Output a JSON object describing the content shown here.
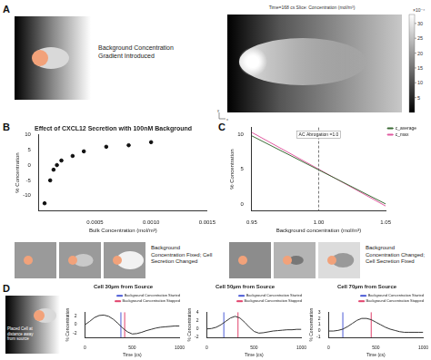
{
  "panel_labels": [
    "A",
    "B",
    "C",
    "D"
  ],
  "diagram_a": {
    "text": "Background Concentration Gradient Introduced"
  },
  "simulation": {
    "title": "Time=168 cs  Slice: Concentration (mol/m³)",
    "axes": [
      "y",
      "x"
    ],
    "colorbar": {
      "label": "×10⁻⁴",
      "range": [
        0,
        33
      ],
      "ticks": [
        5,
        10,
        15,
        20,
        25,
        30
      ]
    }
  },
  "diagram_b": {
    "text": "Background Concentration Fixed; Cell Secretion Changed"
  },
  "diagram_c": {
    "text": "Background Concentration Changed; Cell Secretion Fixed"
  },
  "diagram_d": {
    "text": "Placed Cell at distance away from source"
  },
  "chart_data": [
    {
      "type": "scatter",
      "title": "Effect of CXCL12 Secretion with 100nM Background",
      "x_label": "Bulk Concentration (mol/m³)",
      "y_label": "% Concentration",
      "x": [
        5e-05,
        0.0001,
        0.00013,
        0.00016,
        0.0002,
        0.0003,
        0.0004,
        0.0006,
        0.0008,
        0.001
      ],
      "values": [
        -12.5,
        -5,
        -1.5,
        0,
        1.5,
        3,
        4.5,
        6,
        6.5,
        7.5
      ],
      "color": "#111111",
      "marker": "circle",
      "xlim": [
        0,
        0.0015
      ],
      "xticks": [
        0.0005,
        {
          "value": 0.001,
          "label": "0.0010"
        },
        0.0015
      ],
      "ylim": [
        -15,
        10
      ],
      "yticks": [
        -10,
        -5,
        0,
        5,
        10
      ],
      "grid": false
    },
    {
      "type": "line",
      "x_label": "Background concentration (mol/m³)",
      "y_label": "% Concentration",
      "x": [
        0.95,
        1.0,
        1.05
      ],
      "series": [
        {
          "name": "c_average",
          "color": "#3a6b35",
          "values": [
            9.8,
            4.9,
            0
          ]
        },
        {
          "name": "c_max",
          "color": "#e05aa0",
          "values": [
            10.3,
            5,
            -0.3
          ]
        }
      ],
      "annotations": [
        {
          "x": 1,
          "text": "AC Abrogation =1.0"
        }
      ],
      "legend": "right",
      "xlim": [
        0.95,
        1.05
      ],
      "xticks": [
        0.95,
        {
          "value": 1,
          "label": "1.00"
        },
        1.05
      ],
      "ylim": [
        -1,
        11
      ],
      "yticks": [
        0,
        5,
        10
      ],
      "grid": false
    },
    {
      "type": "line",
      "title": "Cell 30µm from Source",
      "x_label": "Time (cs)",
      "y_label": "% Concentration",
      "x": [
        0,
        50,
        100,
        150,
        200,
        250,
        300,
        350,
        400,
        450,
        500,
        550,
        600,
        650,
        700,
        750,
        800,
        850,
        900,
        950,
        1000
      ],
      "series": [
        {
          "color": "#333333",
          "values": [
            0,
            0.8,
            1.7,
            2.2,
            2.3,
            2.0,
            1.3,
            0.3,
            -0.8,
            -1.7,
            -2.2,
            -2.1,
            -1.8,
            -1.4,
            -1.1,
            -0.8,
            -0.6,
            -0.5,
            -0.4,
            -0.3,
            -0.3
          ]
        }
      ],
      "vlines": [
        {
          "name": "Background Concentration Started",
          "x": 380,
          "color": "#4b5bd6"
        },
        {
          "name": "Background Concentration Stopped",
          "x": 420,
          "color": "#e0406a"
        }
      ],
      "legend": "upper right",
      "xlim": [
        0,
        1000
      ],
      "xticks": [
        0,
        500,
        1000
      ],
      "ylim": [
        -3,
        3
      ],
      "yticks": [
        -2,
        0,
        2
      ],
      "grid": false
    },
    {
      "type": "line",
      "title": "Cell 50µm from Source",
      "x_label": "Time (cs)",
      "y_label": "% Concentration",
      "x": [
        0,
        50,
        100,
        150,
        200,
        250,
        300,
        350,
        400,
        450,
        500,
        550,
        600,
        650,
        700,
        750,
        800,
        850,
        900,
        950,
        1000
      ],
      "series": [
        {
          "color": "#333333",
          "values": [
            0,
            0.1,
            0.4,
            1.0,
            1.8,
            2.6,
            3.0,
            2.6,
            1.6,
            0.4,
            -0.6,
            -1.0,
            -0.9,
            -0.7,
            -0.5,
            -0.4,
            -0.3,
            -0.2,
            -0.2,
            -0.1,
            -0.1
          ]
        }
      ],
      "vlines": [
        {
          "name": "Background Concentration Started",
          "x": 180,
          "color": "#4b5bd6"
        },
        {
          "name": "Background Concentration Stopped",
          "x": 330,
          "color": "#e0406a"
        }
      ],
      "legend": "upper right",
      "xlim": [
        0,
        1000
      ],
      "xticks": [
        0,
        500,
        1000
      ],
      "ylim": [
        -2,
        4
      ],
      "yticks": [
        -2,
        0,
        2,
        4
      ],
      "grid": false
    },
    {
      "type": "line",
      "title": "Cell 70µm from Source",
      "x_label": "Time (cs)",
      "y_label": "% Concentration",
      "x": [
        0,
        50,
        100,
        150,
        200,
        250,
        300,
        350,
        400,
        450,
        500,
        550,
        600,
        650,
        700,
        750,
        800,
        850,
        900,
        950,
        1000
      ],
      "series": [
        {
          "color": "#333333",
          "values": [
            0,
            0,
            0.1,
            0.3,
            0.7,
            1.2,
            1.7,
            2.0,
            2.0,
            1.8,
            1.4,
            1.0,
            0.6,
            0.3,
            0.1,
            -0.1,
            -0.2,
            -0.2,
            -0.2,
            -0.2,
            -0.2
          ]
        }
      ],
      "vlines": [
        {
          "name": "Background Concentration Started",
          "x": 150,
          "color": "#4b5bd6"
        },
        {
          "name": "Background Concentration Stopped",
          "x": 450,
          "color": "#e0406a"
        }
      ],
      "legend": "upper right",
      "xlim": [
        0,
        1000
      ],
      "xticks": [
        0,
        500,
        1000
      ],
      "ylim": [
        -1,
        3
      ],
      "yticks": [
        -1,
        0,
        1,
        2,
        3
      ],
      "grid": false
    }
  ]
}
